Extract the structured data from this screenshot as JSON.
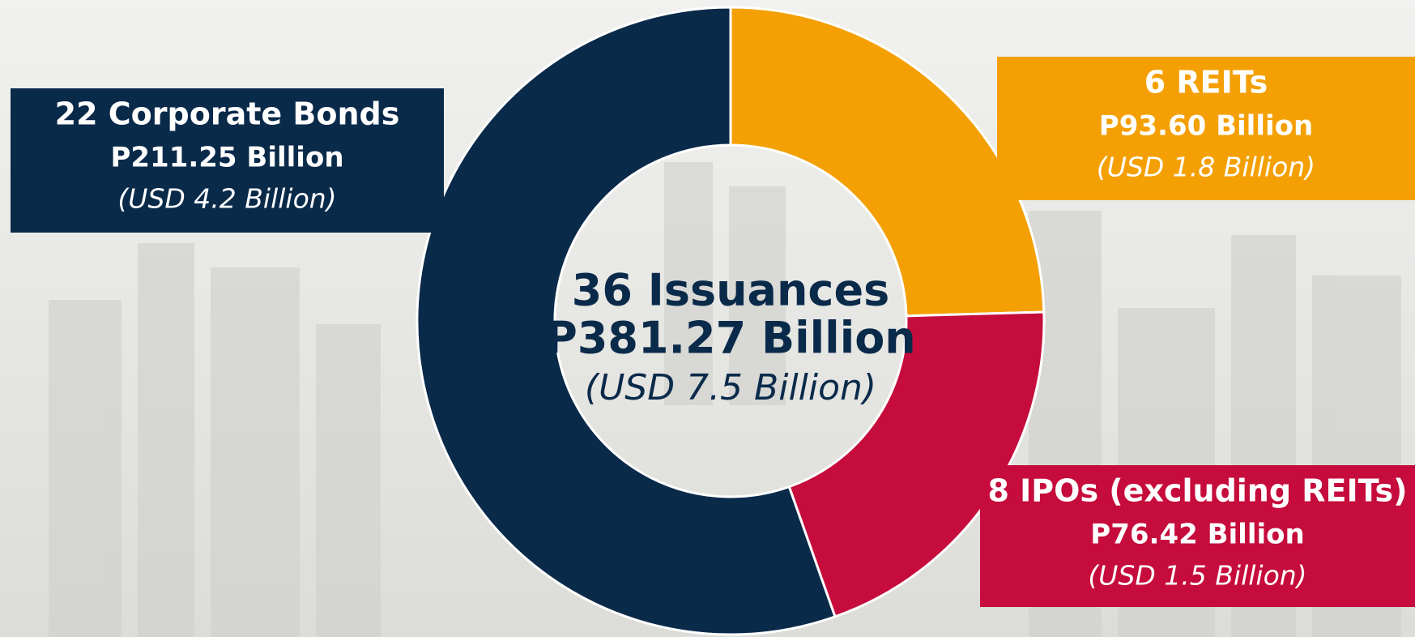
{
  "chart_data": {
    "type": "donut",
    "categories": [
      "6 REITs",
      "8 IPOs (excluding REITs)",
      "22 Corporate Bonds"
    ],
    "values": [
      93.6,
      76.42,
      211.25
    ],
    "value_labels": [
      "P93.60 Billion",
      "P76.42 Billion",
      "P211.25 Billion"
    ],
    "usd_labels": [
      "(USD 1.8 Billion)",
      "(USD 1.5 Billion)",
      "(USD 4.2 Billion)"
    ],
    "colors": [
      "#f4a004",
      "#c60c3c",
      "#0a2a4a"
    ],
    "center_title": "36 Issuances",
    "center_value": "P381.27 Billion",
    "center_usd": "(USD 7.5 Billion)"
  }
}
